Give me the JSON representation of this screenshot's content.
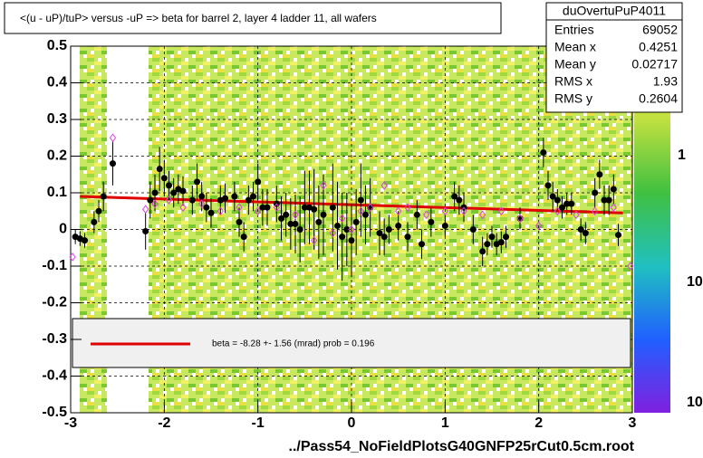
{
  "chart_data": {
    "type": "scatter",
    "title": "<(u - uP)/tuP> versus  -uP => beta for barrel 2, layer 4 ladder 11, all wafers",
    "x_label": "../Pass54_NoFieldPlotsG40GNFP25rCut0.5cm.root",
    "stats": {
      "name": "duOvertuPuP4011",
      "rows": [
        [
          "Entries",
          "69052"
        ],
        [
          "Mean x",
          "0.4251"
        ],
        [
          "Mean y",
          "0.02717"
        ],
        [
          "RMS x",
          "1.93"
        ],
        [
          "RMS y",
          "0.2604"
        ]
      ]
    },
    "legend_text": "beta =   -8.28 +-  1.56 (mrad) prob = 0.196",
    "z_tick_labels": [
      "1",
      "10",
      "10"
    ],
    "xlim": [
      -3,
      3
    ],
    "ylim": [
      -0.5,
      0.5
    ],
    "xticks": [
      -3,
      -2,
      -1,
      0,
      1,
      2,
      3
    ],
    "yticks": [
      -0.5,
      -0.4,
      -0.3,
      -0.2,
      -0.1,
      0,
      0.1,
      0.2,
      0.3,
      0.4,
      0.5
    ],
    "series": [
      {
        "style": "line",
        "color": "#e00000",
        "x": [
          -2.9,
          2.9
        ],
        "values": [
          0.09,
          0.045
        ]
      },
      {
        "style": "points",
        "color": "#000000",
        "x": [
          -2.95,
          -2.9,
          -2.85,
          -2.75,
          -2.7,
          -2.65,
          -2.55,
          -2.2,
          -2.15,
          -2.1,
          -2.05,
          -2.0,
          -1.95,
          -1.9,
          -1.85,
          -1.8,
          -1.7,
          -1.65,
          -1.6,
          -1.55,
          -1.5,
          -1.4,
          -1.35,
          -1.25,
          -1.2,
          -1.15,
          -1.1,
          -1.05,
          -1.0,
          -0.95,
          -0.9,
          -0.8,
          -0.75,
          -0.7,
          -0.65,
          -0.6,
          -0.55,
          -0.5,
          -0.45,
          -0.4,
          -0.35,
          -0.3,
          -0.2,
          -0.15,
          -0.1,
          -0.05,
          0.0,
          0.05,
          0.1,
          0.15,
          0.2,
          0.3,
          0.35,
          0.4,
          0.5,
          0.6,
          0.7,
          0.75,
          0.85,
          1.0,
          1.1,
          1.15,
          1.2,
          1.3,
          1.4,
          1.45,
          1.5,
          1.55,
          1.6,
          1.65,
          1.8,
          2.05,
          2.1,
          2.15,
          2.2,
          2.25,
          2.3,
          2.35,
          2.45,
          2.5,
          2.6,
          2.65,
          2.7,
          2.75,
          2.8,
          2.85
        ],
        "values": [
          -0.02,
          -0.025,
          -0.03,
          0.02,
          0.05,
          0.09,
          0.18,
          -0.005,
          0.08,
          0.1,
          0.165,
          0.14,
          0.12,
          0.1,
          0.11,
          0.105,
          0.08,
          0.13,
          0.09,
          0.06,
          0.045,
          0.08,
          0.085,
          0.09,
          0.02,
          -0.02,
          0.08,
          0.09,
          0.13,
          0.06,
          0.06,
          0.07,
          0.03,
          0.04,
          0.015,
          0.015,
          0.0,
          0.06,
          0.06,
          0.055,
          0.02,
          0.04,
          0.06,
          0.01,
          -0.02,
          0.0,
          -0.03,
          0.02,
          0.08,
          0.04,
          0.06,
          -0.01,
          -0.02,
          0.0,
          0.01,
          -0.02,
          0.04,
          -0.04,
          0.02,
          0.01,
          0.09,
          0.08,
          0.06,
          0.0,
          -0.06,
          -0.04,
          -0.02,
          -0.04,
          -0.035,
          -0.02,
          0.03,
          0.21,
          0.12,
          0.09,
          0.08,
          0.06,
          0.07,
          0.07,
          0.0,
          -0.01,
          0.1,
          0.15,
          0.08,
          0.08,
          0.11,
          -0.015
        ],
        "errors": [
          0.02,
          0.02,
          0.02,
          0.03,
          0.03,
          0.04,
          0.06,
          0.05,
          0.05,
          0.05,
          0.06,
          0.05,
          0.04,
          0.04,
          0.04,
          0.04,
          0.04,
          0.05,
          0.04,
          0.04,
          0.04,
          0.04,
          0.04,
          0.04,
          0.04,
          0.04,
          0.04,
          0.04,
          0.05,
          0.05,
          0.05,
          0.05,
          0.06,
          0.06,
          0.07,
          0.08,
          0.09,
          0.1,
          0.1,
          0.11,
          0.1,
          0.11,
          0.12,
          0.12,
          0.12,
          0.1,
          0.1,
          0.09,
          0.1,
          0.08,
          0.08,
          0.06,
          0.05,
          0.04,
          0.04,
          0.04,
          0.04,
          0.04,
          0.04,
          0.03,
          0.04,
          0.04,
          0.04,
          0.04,
          0.04,
          0.03,
          0.03,
          0.03,
          0.03,
          0.03,
          0.03,
          0.04,
          0.04,
          0.04,
          0.03,
          0.03,
          0.03,
          0.03,
          0.03,
          0.03,
          0.04,
          0.04,
          0.04,
          0.04,
          0.04,
          0.03
        ]
      },
      {
        "style": "diamonds",
        "color": "#e040e0",
        "x": [
          -2.98,
          -2.55,
          -2.2,
          -2.1,
          -1.95,
          -1.8,
          -1.6,
          -1.4,
          -1.2,
          -1.0,
          -0.8,
          -0.6,
          -0.4,
          -0.3,
          -0.2,
          -0.1,
          0.0,
          0.1,
          0.2,
          0.35,
          0.5,
          0.6,
          0.8,
          1.0,
          1.2,
          1.4,
          1.6,
          1.8,
          2.0,
          2.2,
          2.4,
          2.6,
          2.8,
          2.98
        ],
        "values": [
          -0.075,
          0.25,
          0.055,
          0.07,
          0.08,
          0.06,
          0.07,
          0.05,
          0.06,
          0.05,
          0.06,
          0.04,
          -0.03,
          0.12,
          -0.01,
          0.03,
          0.0,
          0.05,
          0.06,
          0.12,
          0.05,
          0.06,
          0.04,
          0.05,
          0.05,
          0.04,
          0.05,
          0.03,
          0.01,
          0.05,
          0.04,
          0.05,
          0.06,
          -0.1
        ]
      }
    ]
  }
}
